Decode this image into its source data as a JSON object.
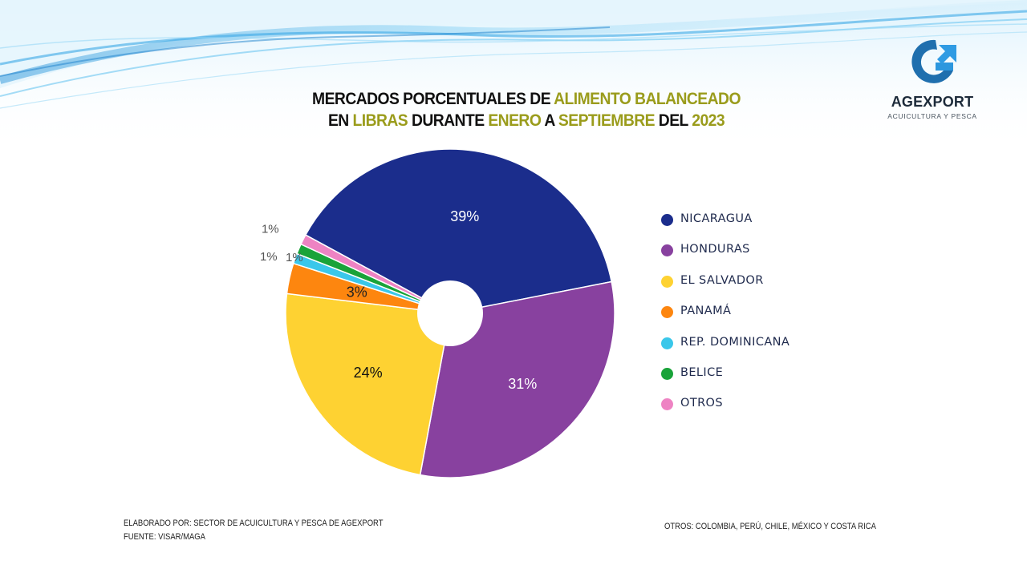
{
  "title": {
    "line1": [
      {
        "text": "MERCADOS PORCENTUALES DE ",
        "highlight": false
      },
      {
        "text": "ALIMENTO BALANCEADO",
        "highlight": true
      }
    ],
    "line2": [
      {
        "text": "EN ",
        "highlight": false
      },
      {
        "text": "LIBRAS",
        "highlight": true
      },
      {
        "text": " DURANTE ",
        "highlight": false
      },
      {
        "text": "ENERO",
        "highlight": true
      },
      {
        "text": " A ",
        "highlight": false
      },
      {
        "text": "SEPTIEMBRE",
        "highlight": true
      },
      {
        "text": " DEL ",
        "highlight": false
      },
      {
        "text": "2023",
        "highlight": true
      }
    ]
  },
  "logo": {
    "name": "AGEXPORT",
    "subtitle": "ACUICULTURA Y PESCA",
    "colors": {
      "dark": "#1f6fae",
      "light": "#2f9be3"
    }
  },
  "colors": {
    "title_highlight": "#9a9c1c",
    "title_text": "#111111",
    "legend_text": "#1f2a4d"
  },
  "chart_data": {
    "type": "pie",
    "hole": "donut-small",
    "slices": [
      {
        "label": "NICARAGUA",
        "value": 39,
        "display": "39%",
        "color": "#1b2d8c",
        "label_color": "#ffffff"
      },
      {
        "label": "HONDURAS",
        "value": 31,
        "display": "31%",
        "color": "#88419f",
        "label_color": "#ffffff"
      },
      {
        "label": "EL SALVADOR",
        "value": 24,
        "display": "24%",
        "color": "#fed232",
        "label_color": "#111111"
      },
      {
        "label": "PANAMÁ",
        "value": 3,
        "display": "3%",
        "color": "#fd860f",
        "label_color": "#222222"
      },
      {
        "label": "REP. DOMINICANA",
        "value": 1,
        "display": "1%",
        "color": "#3ac7ea",
        "label_color": "#555555"
      },
      {
        "label": "BELICE",
        "value": 1,
        "display": "1%",
        "color": "#19a339",
        "label_color": "#555555"
      },
      {
        "label": "OTROS",
        "value": 1,
        "display": "1%",
        "color": "#ee83c3",
        "label_color": "#555555"
      }
    ],
    "legend_position": "right"
  },
  "footer": {
    "left_line1": "ELABORADO POR: SECTOR DE ACUICULTURA Y PESCA DE AGEXPORT",
    "left_line2": "FUENTE:  VISAR/MAGA",
    "right": "OTROS:  COLOMBIA, PERÚ, CHILE, MÉXICO Y COSTA RICA"
  }
}
